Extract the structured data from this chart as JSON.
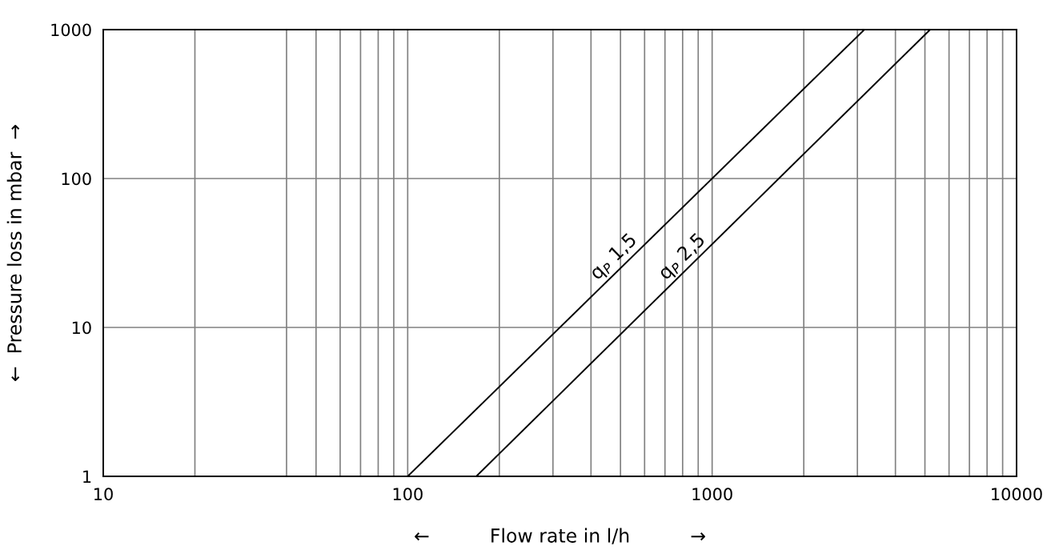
{
  "chart_data": {
    "type": "line",
    "xlabel": "←          Flow rate in l/h          →",
    "ylabel": "←  Pressure loss in mbar  →",
    "log": "xy",
    "xlim": [
      10,
      10000
    ],
    "ylim": [
      1,
      1000
    ],
    "xticks": [
      10,
      {
        "value": 20,
        "label": null
      },
      {
        "value": 40,
        "label": null
      },
      {
        "value": 50,
        "label": null
      },
      {
        "value": 60,
        "label": null
      },
      {
        "value": 70,
        "label": null
      },
      {
        "value": 80,
        "label": null
      },
      {
        "value": 90,
        "label": null
      },
      100,
      {
        "value": 200,
        "label": null
      },
      {
        "value": 300,
        "label": null
      },
      {
        "value": 400,
        "label": null
      },
      {
        "value": 500,
        "label": null
      },
      {
        "value": 600,
        "label": null
      },
      {
        "value": 700,
        "label": null
      },
      {
        "value": 800,
        "label": null
      },
      {
        "value": 900,
        "label": null
      },
      1000,
      {
        "value": 2000,
        "label": null
      },
      {
        "value": 3000,
        "label": null
      },
      {
        "value": 4000,
        "label": null
      },
      {
        "value": 5000,
        "label": null
      },
      {
        "value": 6000,
        "label": null
      },
      {
        "value": 7000,
        "label": null
      },
      {
        "value": 8000,
        "label": null
      },
      {
        "value": 9000,
        "label": null
      },
      10000
    ],
    "yticks": [
      1,
      10,
      100,
      1000
    ],
    "grid": true,
    "series": [
      {
        "color": "#000000",
        "x": [
          100,
          3162
        ],
        "values": [
          1,
          1000
        ]
      },
      {
        "color": "#000000",
        "x": [
          168,
          5200
        ],
        "values": [
          1,
          1000
        ]
      }
    ],
    "annotations": [
      {
        "text": "q$_{P}$ 1,5",
        "x": 500,
        "y": 25
      },
      {
        "text": "q$_{P}$ 2,5",
        "x": 840,
        "y": 25
      }
    ]
  }
}
